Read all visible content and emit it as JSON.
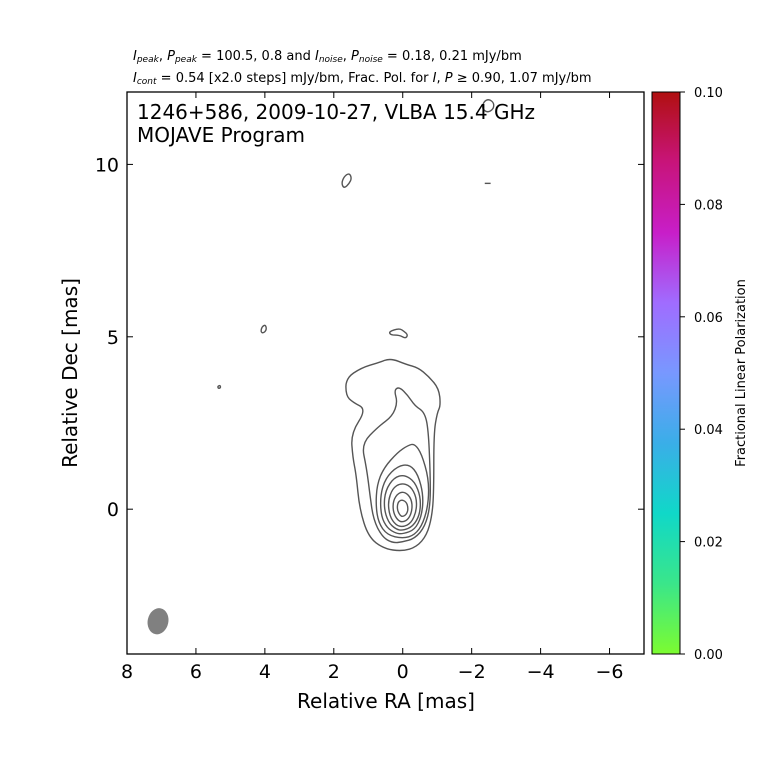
{
  "header": {
    "line1": {
      "ipeak": "I",
      "ipeak_sub": "peak",
      "ppeak": "P",
      "ppeak_sub": "peak",
      "eq1": " = 100.5, 0.8 and ",
      "inoise": "I",
      "inoise_sub": "noise",
      "pnoise": "P",
      "pnoise_sub": "noise",
      "eq2": " = 0.18, 0.21 mJy/bm"
    },
    "line2": {
      "icont": "I",
      "icont_sub": "cont",
      "eq1": " = 0.54 [x2.0 steps] mJy/bm, Frac. Pol. for ",
      "i": "I",
      "p": "P",
      "eq2": " ≥  0.90, 1.07 mJy/bm"
    }
  },
  "chart_data": {
    "type": "contour",
    "title_line1": "1246+586, 2009-10-27, VLBA 15.4 GHz",
    "title_line2": "MOJAVE Program",
    "xlabel": "Relative RA [mas]",
    "ylabel": "Relative Dec [mas]",
    "xlim": [
      8,
      -7
    ],
    "ylim": [
      -4.2,
      12.1
    ],
    "xticks": [
      8,
      6,
      4,
      2,
      0,
      -2,
      -4,
      -6
    ],
    "xtick_labels": [
      "8",
      "6",
      "4",
      "2",
      "0",
      "−2",
      "−4",
      "−6"
    ],
    "yticks": [
      10,
      5,
      0
    ],
    "ytick_labels": [
      "10",
      "5",
      "0"
    ],
    "contour_color": "#555555",
    "contours": [
      {
        "level": 1,
        "points": [
          [
            0.02,
            -1.22
          ],
          [
            -0.4,
            -1.1
          ],
          [
            -0.7,
            -0.75
          ],
          [
            -0.85,
            -0.2
          ],
          [
            -0.9,
            0.5
          ],
          [
            -0.9,
            2.2
          ],
          [
            -1.0,
            2.8
          ],
          [
            -1.1,
            3.0
          ],
          [
            -1.05,
            3.5
          ],
          [
            -0.75,
            3.85
          ],
          [
            -0.45,
            4.1
          ],
          [
            -0.1,
            4.2
          ],
          [
            0.35,
            4.38
          ],
          [
            0.7,
            4.25
          ],
          [
            1.2,
            4.1
          ],
          [
            1.65,
            3.8
          ],
          [
            1.65,
            3.3
          ],
          [
            1.45,
            3.1
          ],
          [
            1.05,
            2.9
          ],
          [
            1.5,
            2.2
          ],
          [
            1.45,
            1.5
          ],
          [
            1.35,
            1.0
          ],
          [
            1.25,
            0.0
          ],
          [
            1.0,
            -0.8
          ],
          [
            0.55,
            -1.15
          ]
        ]
      },
      {
        "level": 2,
        "points": [
          [
            0.0,
            -0.95
          ],
          [
            -0.35,
            -0.85
          ],
          [
            -0.65,
            -0.5
          ],
          [
            -0.8,
            0.1
          ],
          [
            -0.8,
            1.0
          ],
          [
            -0.75,
            2.2
          ],
          [
            -0.65,
            2.8
          ],
          [
            -0.35,
            3.0
          ],
          [
            -0.15,
            3.3
          ],
          [
            0.1,
            3.55
          ],
          [
            0.25,
            3.45
          ],
          [
            0.15,
            3.1
          ],
          [
            0.3,
            2.7
          ],
          [
            0.7,
            2.4
          ],
          [
            1.2,
            1.9
          ],
          [
            1.05,
            1.2
          ],
          [
            0.95,
            0.4
          ],
          [
            0.85,
            -0.3
          ],
          [
            0.6,
            -0.8
          ],
          [
            0.3,
            -0.98
          ]
        ]
      },
      {
        "level": 4,
        "points": [
          [
            0.0,
            -0.85
          ],
          [
            -0.35,
            -0.75
          ],
          [
            -0.6,
            -0.4
          ],
          [
            -0.75,
            0.2
          ],
          [
            -0.75,
            0.9
          ],
          [
            -0.55,
            1.6
          ],
          [
            -0.35,
            1.9
          ],
          [
            -0.15,
            1.85
          ],
          [
            0.15,
            1.65
          ],
          [
            0.55,
            1.2
          ],
          [
            0.75,
            0.7
          ],
          [
            0.78,
            0.1
          ],
          [
            0.7,
            -0.4
          ],
          [
            0.45,
            -0.75
          ]
        ]
      },
      {
        "level": 8,
        "points": [
          [
            0.0,
            -0.72
          ],
          [
            -0.35,
            -0.6
          ],
          [
            -0.55,
            -0.2
          ],
          [
            -0.6,
            0.4
          ],
          [
            -0.45,
            1.0
          ],
          [
            -0.2,
            1.3
          ],
          [
            0.15,
            1.25
          ],
          [
            0.5,
            0.9
          ],
          [
            0.65,
            0.4
          ],
          [
            0.63,
            -0.2
          ],
          [
            0.45,
            -0.55
          ],
          [
            0.2,
            -0.7
          ]
        ]
      },
      {
        "level": 16,
        "points": [
          [
            0.0,
            -0.62
          ],
          [
            -0.3,
            -0.5
          ],
          [
            -0.5,
            -0.15
          ],
          [
            -0.52,
            0.35
          ],
          [
            -0.35,
            0.8
          ],
          [
            -0.05,
            1.0
          ],
          [
            0.25,
            0.92
          ],
          [
            0.5,
            0.55
          ],
          [
            0.55,
            0.05
          ],
          [
            0.42,
            -0.38
          ],
          [
            0.2,
            -0.58
          ]
        ]
      },
      {
        "level": 32,
        "points": [
          [
            0.0,
            -0.52
          ],
          [
            -0.25,
            -0.4
          ],
          [
            -0.4,
            -0.05
          ],
          [
            -0.4,
            0.35
          ],
          [
            -0.22,
            0.68
          ],
          [
            0.05,
            0.76
          ],
          [
            0.3,
            0.6
          ],
          [
            0.43,
            0.22
          ],
          [
            0.38,
            -0.2
          ],
          [
            0.2,
            -0.46
          ]
        ]
      },
      {
        "level": 64,
        "points": [
          [
            0.0,
            -0.38
          ],
          [
            -0.18,
            -0.28
          ],
          [
            -0.28,
            0.0
          ],
          [
            -0.25,
            0.3
          ],
          [
            -0.08,
            0.5
          ],
          [
            0.12,
            0.48
          ],
          [
            0.28,
            0.25
          ],
          [
            0.28,
            -0.08
          ],
          [
            0.15,
            -0.32
          ]
        ]
      },
      {
        "level": 128,
        "points": [
          [
            0.0,
            -0.22
          ],
          [
            -0.12,
            -0.14
          ],
          [
            -0.16,
            0.04
          ],
          [
            -0.1,
            0.22
          ],
          [
            0.05,
            0.28
          ],
          [
            0.15,
            0.18
          ],
          [
            0.16,
            -0.02
          ],
          [
            0.08,
            -0.18
          ]
        ]
      },
      {
        "level": 1,
        "points": [
          [
            1.7,
            9.3
          ],
          [
            1.55,
            9.45
          ],
          [
            1.48,
            9.6
          ],
          [
            1.55,
            9.75
          ],
          [
            1.7,
            9.65
          ],
          [
            1.78,
            9.45
          ]
        ]
      },
      {
        "level": 1,
        "points": [
          [
            -2.45,
            11.5
          ],
          [
            -2.63,
            11.6
          ],
          [
            -2.65,
            11.78
          ],
          [
            -2.5,
            11.9
          ],
          [
            -2.35,
            11.82
          ],
          [
            -2.3,
            11.62
          ]
        ]
      },
      {
        "level": 1,
        "points": [
          [
            0.4,
            5.15
          ],
          [
            0.1,
            5.25
          ],
          [
            -0.05,
            5.15
          ],
          [
            -0.15,
            5.05
          ],
          [
            -0.08,
            4.95
          ],
          [
            0.1,
            5.05
          ],
          [
            0.35,
            5.05
          ]
        ]
      },
      {
        "level": 1,
        "points": [
          [
            4.05,
            5.1
          ],
          [
            3.95,
            5.2
          ],
          [
            3.98,
            5.35
          ],
          [
            4.08,
            5.3
          ],
          [
            4.12,
            5.15
          ]
        ]
      },
      {
        "level": 1,
        "points": [
          [
            5.35,
            3.5
          ],
          [
            5.28,
            3.52
          ],
          [
            5.3,
            3.6
          ],
          [
            5.37,
            3.56
          ]
        ]
      },
      {
        "level": 1,
        "points": [
          [
            -2.38,
            9.45
          ],
          [
            -2.55,
            9.45
          ]
        ]
      }
    ],
    "beam": {
      "x": 7.1,
      "y": -3.25,
      "major_mas": 0.9,
      "minor_mas": 0.6,
      "color": "#808080"
    },
    "colorbar": {
      "label": "Fractional Linear Polarization",
      "min": 0.0,
      "max": 0.1,
      "ticks": [
        0.0,
        0.02,
        0.04,
        0.06,
        0.08,
        0.1
      ],
      "tick_labels": [
        "0.00",
        "0.02",
        "0.04",
        "0.06",
        "0.08",
        "0.10"
      ],
      "colors": [
        "#7cfc30",
        "#3ae68a",
        "#10d8c8",
        "#3aaee8",
        "#7898ff",
        "#a06cff",
        "#c81ec8",
        "#c8147a",
        "#b01010"
      ]
    }
  }
}
